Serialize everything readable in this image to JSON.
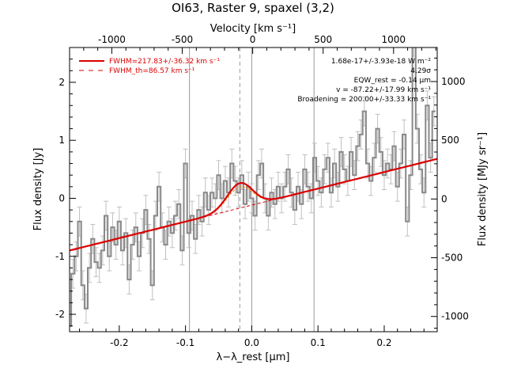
{
  "chart_data": {
    "type": "line",
    "title": "OI63, Raster 9, spaxel (3,2)",
    "xlabel": "λ−λ_rest [μm]",
    "ylabel": "Flux density [Jy]",
    "top_xlabel": "Velocity [km s⁻¹]",
    "right_ylabel": "Flux density [MJy sr⁻¹]",
    "xlim": [
      -0.275,
      0.28
    ],
    "ylim": [
      -2.3,
      2.6
    ],
    "right_ylim": [
      -1130,
      1290
    ],
    "top_xlim": [
      -1300,
      1310
    ],
    "x_ticks": [
      "-0.2",
      "-0.1",
      "0.0",
      "0.1",
      "0.2"
    ],
    "x_tick_values": [
      -0.2,
      -0.1,
      0.0,
      0.1,
      0.2
    ],
    "y_ticks": [
      "-2",
      "-1",
      "0",
      "1",
      "2"
    ],
    "y_tick_values": [
      -2,
      -1,
      0,
      1,
      2
    ],
    "top_ticks": [
      "-1000",
      "-500",
      "0",
      "500",
      "1000"
    ],
    "top_tick_values": [
      -1000,
      -500,
      0,
      500,
      1000
    ],
    "right_ticks": [
      "-1000",
      "-500",
      "0",
      "500",
      "1000"
    ],
    "right_tick_values": [
      -1000,
      -500,
      0,
      500,
      1000
    ],
    "vlines_solid": [
      -0.094,
      0.0,
      0.094
    ],
    "vline_dashed": -0.018,
    "legend": [
      {
        "label": "FWHM=217.83+/-36.32 km s⁻¹",
        "style": "solid",
        "color": "#dd0000"
      },
      {
        "label": "FWHM_th=86.57 km s⁻¹",
        "style": "dashed",
        "color": "#dd0000"
      }
    ],
    "annotations": [
      "1.68e-17+/-3.93e-18 W m⁻²",
      "4.29σ",
      "EQW_rest = -0.14 μm",
      "v = -87.22+/-17.99 km s⁻¹",
      "Broadening = 200.00+/-33.33 km s⁻¹"
    ],
    "fit": {
      "continuum_at_xmin": -0.9,
      "continuum_at_xmax": 0.68,
      "line_center": -0.018,
      "line_peak": 0.43,
      "line_sigma": 0.019
    },
    "series": [
      {
        "name": "spectrum",
        "style": "step",
        "x": [
          -0.275,
          -0.27,
          -0.265,
          -0.26,
          -0.255,
          -0.25,
          -0.245,
          -0.24,
          -0.235,
          -0.23,
          -0.225,
          -0.22,
          -0.215,
          -0.21,
          -0.205,
          -0.2,
          -0.195,
          -0.19,
          -0.185,
          -0.18,
          -0.175,
          -0.17,
          -0.165,
          -0.16,
          -0.155,
          -0.15,
          -0.145,
          -0.14,
          -0.135,
          -0.13,
          -0.125,
          -0.12,
          -0.115,
          -0.11,
          -0.105,
          -0.1,
          -0.095,
          -0.09,
          -0.085,
          -0.08,
          -0.075,
          -0.07,
          -0.065,
          -0.06,
          -0.055,
          -0.05,
          -0.045,
          -0.04,
          -0.035,
          -0.03,
          -0.025,
          -0.02,
          -0.015,
          -0.01,
          -0.005,
          0.0,
          0.005,
          0.01,
          0.015,
          0.02,
          0.025,
          0.03,
          0.035,
          0.04,
          0.045,
          0.05,
          0.055,
          0.06,
          0.065,
          0.07,
          0.075,
          0.08,
          0.085,
          0.09,
          0.095,
          0.1,
          0.105,
          0.11,
          0.115,
          0.12,
          0.125,
          0.13,
          0.135,
          0.14,
          0.145,
          0.15,
          0.155,
          0.16,
          0.165,
          0.17,
          0.175,
          0.18,
          0.185,
          0.19,
          0.195,
          0.2,
          0.205,
          0.21,
          0.215,
          0.22,
          0.225,
          0.23,
          0.235,
          0.24,
          0.245,
          0.25,
          0.255,
          0.26,
          0.265,
          0.27,
          0.275
        ],
        "y": [
          -2.2,
          -1.3,
          -1.0,
          -0.4,
          -1.5,
          -1.9,
          -1.2,
          -0.7,
          -1.1,
          -1.2,
          -0.9,
          -0.3,
          -1.0,
          -0.5,
          -0.8,
          -0.4,
          -0.9,
          -0.6,
          -1.4,
          -0.8,
          -0.5,
          -1.0,
          -0.6,
          -0.2,
          -0.7,
          -1.5,
          -0.3,
          0.2,
          -0.5,
          -0.8,
          -0.4,
          -0.6,
          -0.3,
          -0.1,
          -0.9,
          0.6,
          -0.6,
          -0.3,
          -0.7,
          -0.2,
          -0.4,
          0.1,
          -0.2,
          0.1,
          0.0,
          0.4,
          0.0,
          0.3,
          0.1,
          0.6,
          0.3,
          0.1,
          0.4,
          -0.1,
          0.2,
          0.0,
          -0.3,
          0.4,
          0.6,
          0.0,
          -0.3,
          0.1,
          -0.1,
          0.2,
          0.0,
          0.2,
          0.5,
          0.1,
          -0.2,
          0.2,
          -0.1,
          0.5,
          0.2,
          0.0,
          0.7,
          0.3,
          0.1,
          0.5,
          0.7,
          0.1,
          0.6,
          0.2,
          0.8,
          0.5,
          0.3,
          0.8,
          0.4,
          0.9,
          1.1,
          1.5,
          0.6,
          0.3,
          0.7,
          1.2,
          0.8,
          0.4,
          0.6,
          0.5,
          0.9,
          0.2,
          0.6,
          1.1,
          -0.4,
          0.4,
          2.7,
          1.2,
          0.5,
          0.1,
          1.6,
          0.7,
          1.5
        ],
        "error": 0.25
      }
    ]
  }
}
